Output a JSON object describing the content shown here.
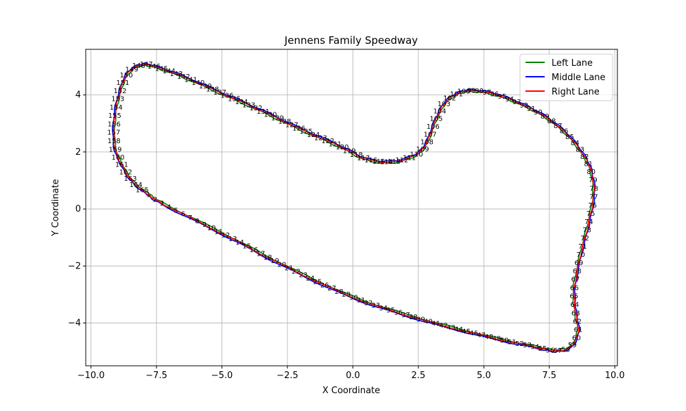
{
  "chart_data": {
    "type": "line",
    "title": "Jennens Family Speedway",
    "xlabel": "X Coordinate",
    "ylabel": "Y Coordinate",
    "xlim": [
      -10.2,
      10.1
    ],
    "ylim": [
      -5.5,
      5.6
    ],
    "xticks": [
      -10.0,
      -7.5,
      -5.0,
      -2.5,
      0.0,
      2.5,
      5.0,
      7.5,
      10.0
    ],
    "yticks": [
      -4,
      -2,
      0,
      2,
      4
    ],
    "grid": true,
    "legend_position": "top-right",
    "series": [
      {
        "name": "Left Lane",
        "color": "#008000"
      },
      {
        "name": "Middle Lane",
        "color": "#0000ff"
      },
      {
        "name": "Right Lane",
        "color": "#ff0000"
      }
    ],
    "track_waypoints": [
      [
        -7.8,
        0.5
      ],
      [
        -7.2,
        0.15
      ],
      [
        -4.8,
        -0.95
      ],
      [
        -2.5,
        -2.05
      ],
      [
        0.0,
        -3.1
      ],
      [
        2.5,
        -3.85
      ],
      [
        5.0,
        -4.45
      ],
      [
        7.0,
        -4.85
      ],
      [
        7.7,
        -4.97
      ],
      [
        8.3,
        -4.85
      ],
      [
        8.6,
        -4.3
      ],
      [
        8.5,
        -3.6
      ],
      [
        8.45,
        -2.8
      ],
      [
        8.7,
        -1.6
      ],
      [
        9.0,
        -0.5
      ],
      [
        9.2,
        0.5
      ],
      [
        9.1,
        1.3
      ],
      [
        8.8,
        1.9
      ],
      [
        8.2,
        2.6
      ],
      [
        7.4,
        3.2
      ],
      [
        6.5,
        3.65
      ],
      [
        5.5,
        4.0
      ],
      [
        4.6,
        4.15
      ],
      [
        4.0,
        4.05
      ],
      [
        3.5,
        3.7
      ],
      [
        3.15,
        3.1
      ],
      [
        2.8,
        2.3
      ],
      [
        2.4,
        1.9
      ],
      [
        1.5,
        1.65
      ],
      [
        0.5,
        1.75
      ],
      [
        -0.5,
        2.2
      ],
      [
        -2.0,
        2.8
      ],
      [
        -3.5,
        3.45
      ],
      [
        -5.0,
        4.05
      ],
      [
        -6.5,
        4.65
      ],
      [
        -7.6,
        5.0
      ],
      [
        -8.1,
        5.05
      ],
      [
        -8.6,
        4.75
      ],
      [
        -8.9,
        4.1
      ],
      [
        -9.1,
        3.2
      ],
      [
        -9.1,
        2.2
      ],
      [
        -8.8,
        1.5
      ],
      [
        -8.4,
        0.95
      ],
      [
        -7.8,
        0.5
      ]
    ],
    "point_labels": [
      "1",
      "2",
      "3",
      "4",
      "5",
      "6",
      "7",
      "8",
      "9",
      "10",
      "11",
      "12",
      "13",
      "14",
      "15",
      "16",
      "17",
      "18",
      "19",
      "20",
      "21",
      "22",
      "23",
      "24",
      "25",
      "26",
      "27",
      "28",
      "29",
      "30",
      "31",
      "32",
      "33",
      "34",
      "35",
      "36",
      "37",
      "38",
      "39",
      "40",
      "41",
      "42",
      "43",
      "44",
      "45",
      "46",
      "47",
      "48",
      "49",
      "50",
      "51",
      "52",
      "53",
      "54",
      "55",
      "56",
      "57",
      "58",
      "59",
      "60",
      "61",
      "62",
      "63",
      "64",
      "65",
      "66",
      "67",
      "68",
      "69",
      "70",
      "71",
      "72",
      "73",
      "74",
      "75",
      "76",
      "77",
      "78",
      "79",
      "80",
      "81",
      "82",
      "83",
      "84",
      "85",
      "86",
      "87",
      "88",
      "89",
      "90",
      "91",
      "92",
      "93",
      "94",
      "95",
      "96",
      "97",
      "98",
      "99",
      "100",
      "101",
      "102",
      "103",
      "104",
      "105",
      "106",
      "107",
      "108",
      "109",
      "110",
      "111",
      "112",
      "113",
      "114",
      "115",
      "116",
      "117",
      "118",
      "119",
      "120",
      "121",
      "122",
      "123",
      "124",
      "125",
      "126",
      "127",
      "128",
      "129",
      "130",
      "131",
      "132",
      "133",
      "134",
      "135",
      "136",
      "137",
      "138",
      "139",
      "140",
      "141",
      "142",
      "143",
      "144",
      "145",
      "146",
      "147",
      "148",
      "149",
      "150",
      "151",
      "152",
      "153",
      "154",
      "155",
      "156",
      "157",
      "158",
      "159",
      "160",
      "161",
      "162",
      "163",
      "164",
      "165"
    ]
  }
}
